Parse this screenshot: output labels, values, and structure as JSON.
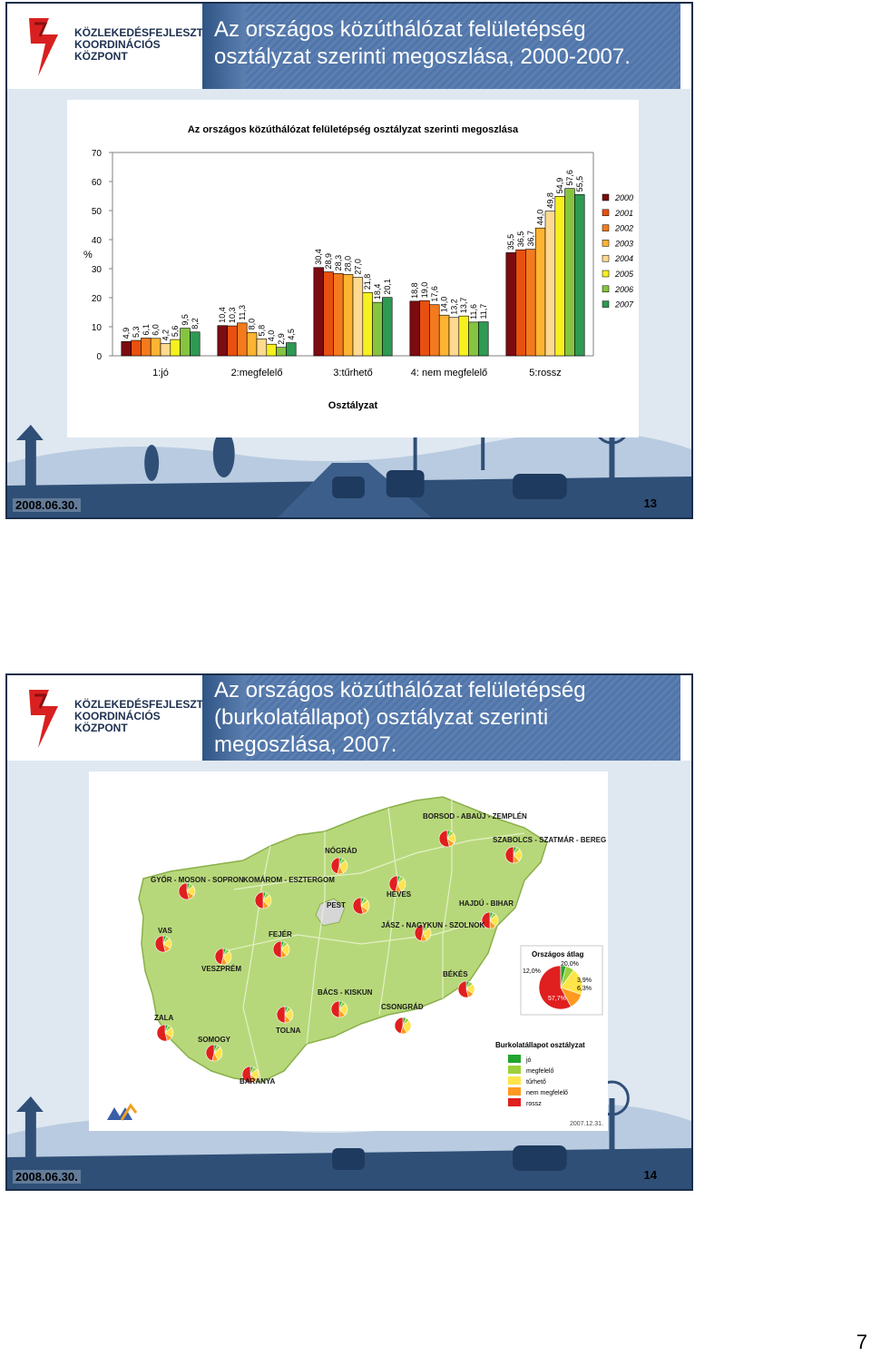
{
  "slide1": {
    "title_line1": "Az országos közúthálózat felületépség",
    "title_line2": "osztályzat szerinti megoszlása, 2000-2007.",
    "date": "2008.06.30.",
    "page_number": "13",
    "logo": {
      "line1": "KÖZLEKEDÉSFEJLESZTÉSI",
      "line2": "KOORDINÁCIÓS",
      "line3": "KÖZPONT"
    },
    "chart_title": "Az országos közúthálózat felületépség osztályzat szerinti megoszlása"
  },
  "slide2": {
    "title_line1": "Az országos közúthálózat felületépség",
    "title_line2": "(burkolatállapot) osztályzat szerinti",
    "title_line3": "megoszlása, 2007.",
    "date": "2008.06.30.",
    "page_number": "14",
    "logo": {
      "line1": "KÖZLEKEDÉSFEJLESZTÉSI",
      "line2": "KOORDINÁCIÓS",
      "line3": "KÖZPONT"
    },
    "map": {
      "counties": [
        "BORSOD - ABAÚJ - ZEMPLÉN",
        "SZABOLCS - SZATMÁR - BEREG",
        "NÓGRÁD",
        "GYŐR - MOSON - SOPRON",
        "KOMÁROM - ESZTERGOM",
        "HEVES",
        "PEST",
        "HAJDÚ - BIHAR",
        "JÁSZ - NAGYKUN - SZOLNOK",
        "VAS",
        "FEJÉR",
        "VESZPRÉM",
        "BÉKÉS",
        "BÁCS - KISKUN",
        "CSONGRÁD",
        "ZALA",
        "TOLNA",
        "SOMOGY",
        "BARANYA"
      ],
      "avg_title": "Országos átlag",
      "avg_values": {
        "jo": "3,9%",
        "megfelelo": "6,3%",
        "turheto": "20,0%",
        "nem_megfelelo": "12,0%",
        "rossz": "57,7%"
      },
      "legend_title": "Burkolatállapot osztályzat",
      "legend": [
        "jó",
        "megfelelő",
        "tűrhető",
        "nem megfelelő",
        "rossz"
      ],
      "legend_colors": [
        "#22a530",
        "#9bd13a",
        "#ffe44a",
        "#ff9a1f",
        "#e01f1f"
      ],
      "stamp": "2007.12.31."
    }
  },
  "page_corner": "7",
  "chart_data": {
    "type": "bar",
    "title": "Az országos közúthálózat felületépség osztályzat szerinti megoszlása",
    "xlabel": "Osztályzat",
    "ylabel": "%",
    "ylim": [
      0,
      70
    ],
    "yticks": [
      "0",
      "10",
      "20",
      "30",
      "40",
      "50",
      "60",
      "70"
    ],
    "categories": [
      "1:jó",
      "2:megfelelő",
      "3:tűrhető",
      "4: nem megfelelő",
      "5:rossz"
    ],
    "series": [
      {
        "name": "2000",
        "color": "#7b0c10",
        "values": [
          4.9,
          10.4,
          30.4,
          18.8,
          35.5
        ],
        "labels": [
          "4,9",
          "10,4",
          "30,4",
          "18,8",
          "35,5"
        ]
      },
      {
        "name": "2001",
        "color": "#e8500f",
        "values": [
          5.3,
          10.3,
          28.9,
          19.0,
          36.5
        ],
        "labels": [
          "5,3",
          "10,3",
          "28,9",
          "19,0",
          "36,5"
        ]
      },
      {
        "name": "2002",
        "color": "#f47a1e",
        "values": [
          6.1,
          11.3,
          28.3,
          17.6,
          36.7
        ],
        "labels": [
          "6,1",
          "11,3",
          "28,3",
          "17,6",
          "36,7"
        ]
      },
      {
        "name": "2003",
        "color": "#ffb431",
        "values": [
          6.0,
          8.0,
          28.0,
          14.0,
          44.0
        ],
        "labels": [
          "6,0",
          "8,0",
          "28,0",
          "14,0",
          "44,0"
        ]
      },
      {
        "name": "2004",
        "color": "#ffd98f",
        "values": [
          4.2,
          5.8,
          27.0,
          13.2,
          49.8
        ],
        "labels": [
          "4,2",
          "5,8",
          "27,0",
          "13,2",
          "49,8"
        ]
      },
      {
        "name": "2005",
        "color": "#f6f01f",
        "values": [
          5.6,
          4.0,
          21.8,
          13.7,
          54.9
        ],
        "labels": [
          "5,6",
          "4,0",
          "21,8",
          "13,7",
          "54,9"
        ]
      },
      {
        "name": "2006",
        "color": "#86c440",
        "values": [
          9.5,
          2.9,
          18.4,
          11.6,
          57.6
        ],
        "labels": [
          "9,5",
          "2,9",
          "18,4",
          "11,6",
          "57,6"
        ]
      },
      {
        "name": "2007",
        "color": "#2e9a52",
        "values": [
          8.2,
          4.5,
          20.1,
          11.7,
          55.5
        ],
        "labels": [
          "8,2",
          "4,5",
          "20,1",
          "11,7",
          "55,5"
        ]
      }
    ],
    "legend": "right"
  }
}
